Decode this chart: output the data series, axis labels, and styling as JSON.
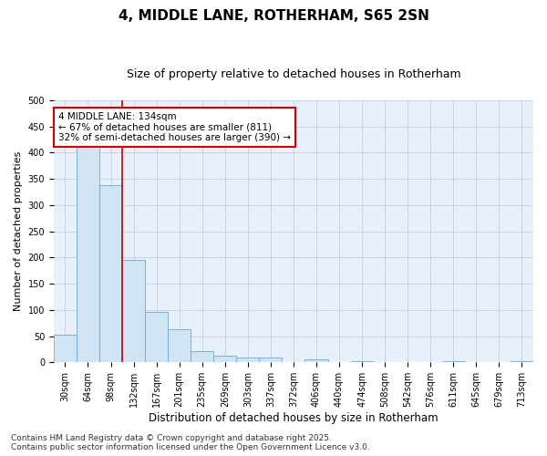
{
  "title": "4, MIDDLE LANE, ROTHERHAM, S65 2SN",
  "subtitle": "Size of property relative to detached houses in Rotherham",
  "xlabel": "Distribution of detached houses by size in Rotherham",
  "ylabel": "Number of detached properties",
  "bin_labels": [
    "30sqm",
    "64sqm",
    "98sqm",
    "132sqm",
    "167sqm",
    "201sqm",
    "235sqm",
    "269sqm",
    "303sqm",
    "337sqm",
    "372sqm",
    "406sqm",
    "440sqm",
    "474sqm",
    "508sqm",
    "542sqm",
    "576sqm",
    "611sqm",
    "645sqm",
    "679sqm",
    "713sqm"
  ],
  "bar_heights": [
    53,
    415,
    338,
    195,
    97,
    64,
    22,
    12,
    10,
    9,
    0,
    5,
    0,
    2,
    0,
    0,
    0,
    2,
    0,
    0,
    2
  ],
  "bar_color": "#d0e4f4",
  "bar_edge_color": "#6aaad4",
  "background_color": "#e8f0fb",
  "grid_color": "#b8c8e4",
  "annotation_line1": "4 MIDDLE LANE: 134sqm",
  "annotation_line2": "← 67% of detached houses are smaller (811)",
  "annotation_line3": "32% of semi-detached houses are larger (390) →",
  "annotation_box_color": "#ffffff",
  "annotation_box_edge_color": "#cc0000",
  "red_line_bin": 3,
  "red_line_color": "#cc0000",
  "ylim": [
    0,
    500
  ],
  "yticks": [
    0,
    50,
    100,
    150,
    200,
    250,
    300,
    350,
    400,
    450,
    500
  ],
  "footnote": "Contains HM Land Registry data © Crown copyright and database right 2025.\nContains public sector information licensed under the Open Government Licence v3.0.",
  "title_fontsize": 11,
  "subtitle_fontsize": 9,
  "xlabel_fontsize": 8.5,
  "ylabel_fontsize": 8,
  "tick_fontsize": 7,
  "annotation_fontsize": 7.5,
  "footnote_fontsize": 6.5
}
